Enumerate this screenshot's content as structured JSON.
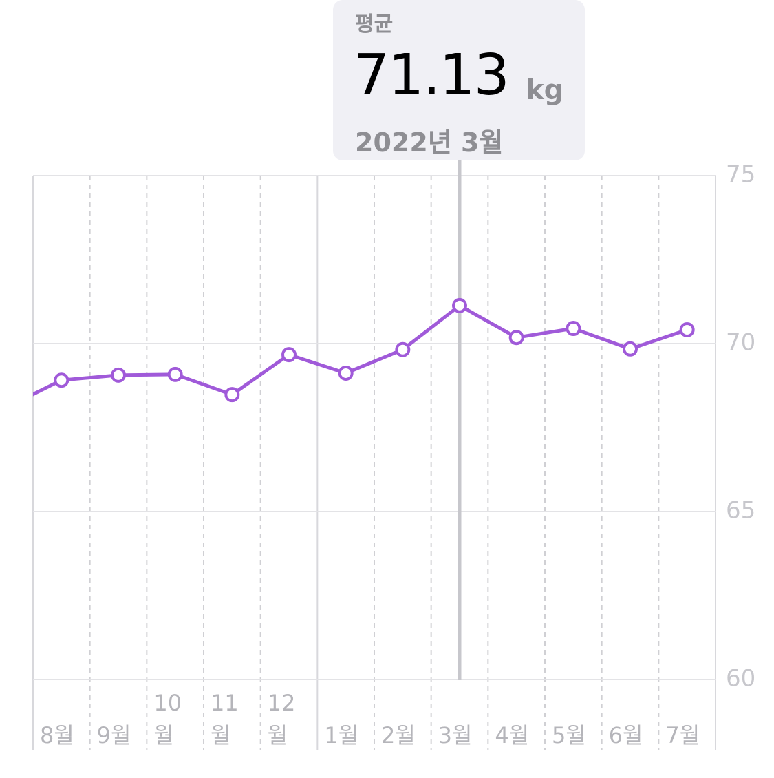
{
  "chart_data": {
    "type": "line",
    "tooltip": {
      "label": "평균",
      "value": 71.13,
      "unit": "kg",
      "date": "2022년 3월"
    },
    "categories": [
      null,
      "8월",
      "9월",
      "10월",
      "11월",
      "12월",
      "1월",
      "2월",
      "3월",
      "4월",
      "5월",
      "6월",
      "7월"
    ],
    "series": [
      {
        "color": "#a05ad9",
        "values": [
          68.07,
          68.91,
          69.06,
          69.08,
          68.48,
          69.67,
          69.12,
          69.82,
          71.13,
          70.18,
          70.45,
          69.84,
          70.41
        ]
      }
    ],
    "selected": 8,
    "ylim": [
      60,
      75
    ],
    "yticks": [
      60,
      65,
      70,
      75
    ],
    "grid": true
  }
}
